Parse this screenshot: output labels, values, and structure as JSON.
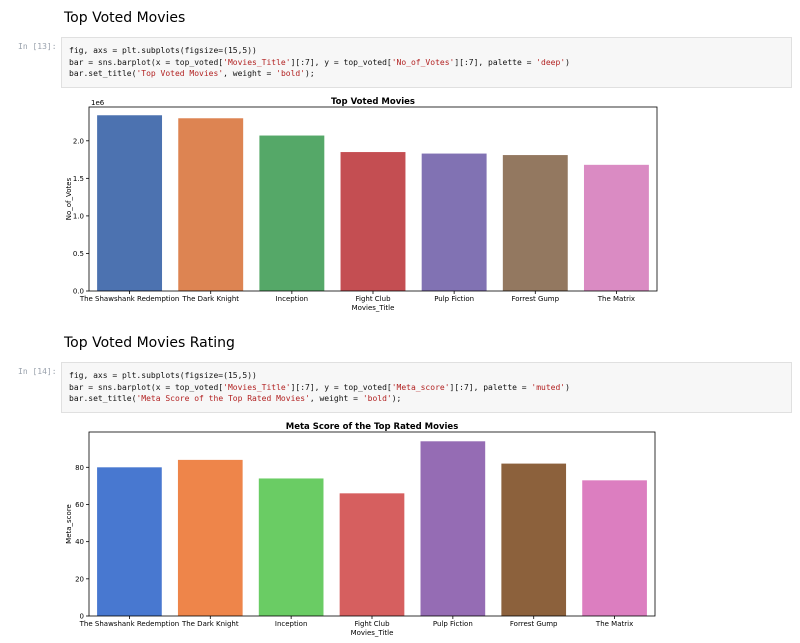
{
  "cells": [
    {
      "heading": "Top Voted Movies",
      "prompt": "In [13]:",
      "code": [
        [
          {
            "t": "fig, axs = plt.subplots(figsize=(15,5))"
          }
        ],
        [
          {
            "t": "bar = sns.barplot(x = top_voted["
          },
          {
            "t": "'Movies_Title'",
            "s": 1
          },
          {
            "t": "][:7], y = top_voted["
          },
          {
            "t": "'No_of_Votes'",
            "s": 1
          },
          {
            "t": "][:7], palette = "
          },
          {
            "t": "'deep'",
            "s": 1
          },
          {
            "t": ")"
          }
        ],
        [
          {
            "t": "bar.set_title("
          },
          {
            "t": "'Top Voted Movies'",
            "s": 1
          },
          {
            "t": ", weight = "
          },
          {
            "t": "'bold'",
            "s": 1
          },
          {
            "t": ");"
          }
        ]
      ]
    },
    {
      "heading": "Top Voted Movies Rating",
      "prompt": "In [14]:",
      "code": [
        [
          {
            "t": "fig, axs = plt.subplots(figsize=(15,5))"
          }
        ],
        [
          {
            "t": "bar = sns.barplot(x = top_voted["
          },
          {
            "t": "'Movies_Title'",
            "s": 1
          },
          {
            "t": "][:7], y = top_voted["
          },
          {
            "t": "'Meta_score'",
            "s": 1
          },
          {
            "t": "][:7], palette = "
          },
          {
            "t": "'muted'",
            "s": 1
          },
          {
            "t": ")"
          }
        ],
        [
          {
            "t": "bar.set_title("
          },
          {
            "t": "'Meta Score of the Top Rated Movies'",
            "s": 1
          },
          {
            "t": ", weight = "
          },
          {
            "t": "'bold'",
            "s": 1
          },
          {
            "t": ");"
          }
        ]
      ]
    }
  ],
  "chart_data": [
    {
      "type": "bar",
      "title": "Top Voted Movies",
      "xlabel": "Movies_Title",
      "ylabel": "No_of_Votes",
      "offset_label": "1e6",
      "categories": [
        "The Shawshank Redemption",
        "The Dark Knight",
        "Inception",
        "Fight Club",
        "Pulp Fiction",
        "Forrest Gump",
        "The Matrix"
      ],
      "values": [
        2.34,
        2.3,
        2.07,
        1.85,
        1.83,
        1.81,
        1.68
      ],
      "ylim": [
        0,
        2.45
      ],
      "yticks": [
        "0.0",
        "0.5",
        "1.0",
        "1.5",
        "2.0"
      ],
      "ytick_values": [
        0,
        0.5,
        1.0,
        1.5,
        2.0
      ],
      "colors": [
        "#4c72b0",
        "#dd8452",
        "#55a868",
        "#c44e52",
        "#8172b3",
        "#937860",
        "#da8bc3"
      ],
      "grid": false
    },
    {
      "type": "bar",
      "title": "Meta Score of the Top Rated Movies",
      "xlabel": "Movies_Title",
      "ylabel": "Meta_score",
      "offset_label": "",
      "categories": [
        "The Shawshank Redemption",
        "The Dark Knight",
        "Inception",
        "Fight Club",
        "Pulp Fiction",
        "Forrest Gump",
        "The Matrix"
      ],
      "values": [
        80,
        84,
        74,
        66,
        94,
        82,
        73
      ],
      "ylim": [
        0,
        99
      ],
      "yticks": [
        "0",
        "20",
        "40",
        "60",
        "80"
      ],
      "ytick_values": [
        0,
        20,
        40,
        60,
        80
      ],
      "colors": [
        "#4878d0",
        "#ee854a",
        "#6acc64",
        "#d65f5f",
        "#956cb4",
        "#8c613c",
        "#dc7ec0"
      ],
      "grid": false
    }
  ]
}
